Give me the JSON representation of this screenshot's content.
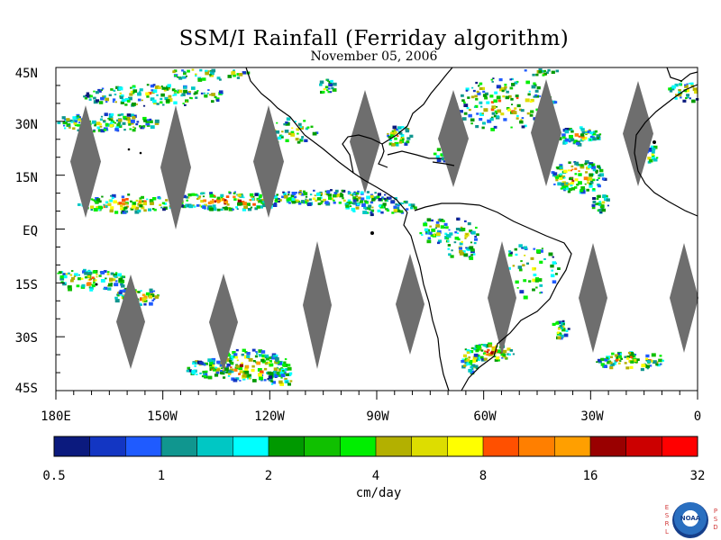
{
  "title": "SSM/I Rainfall (Ferriday algorithm)",
  "subtitle": "November 05, 2006",
  "lat_labels": [
    "45N",
    "30N",
    "15N",
    "EQ",
    "15S",
    "30S",
    "45S"
  ],
  "lon_labels": [
    "180E",
    "150W",
    "120W",
    "90W",
    "60W",
    "30W",
    "0"
  ],
  "colorbar": {
    "units": "cm/day",
    "ticks": [
      "0.5",
      "1",
      "2",
      "4",
      "8",
      "16",
      "32"
    ],
    "colors": [
      "#0b1a7e",
      "#1336c3",
      "#1f5bff",
      "#10968f",
      "#00c7c4",
      "#00ffff",
      "#009900",
      "#10c000",
      "#00ee00",
      "#b3b000",
      "#dddd00",
      "#ffff00",
      "#ff5000",
      "#ff7f00",
      "#ff9f00",
      "#990000",
      "#cc0000",
      "#ff0000"
    ]
  },
  "missing_color": "#6e6e6e",
  "logo": {
    "left_letters": [
      "E",
      "S",
      "R",
      "L"
    ],
    "right_letters": [
      "P",
      "S",
      "D"
    ],
    "emblem_text": "NOAA"
  }
}
